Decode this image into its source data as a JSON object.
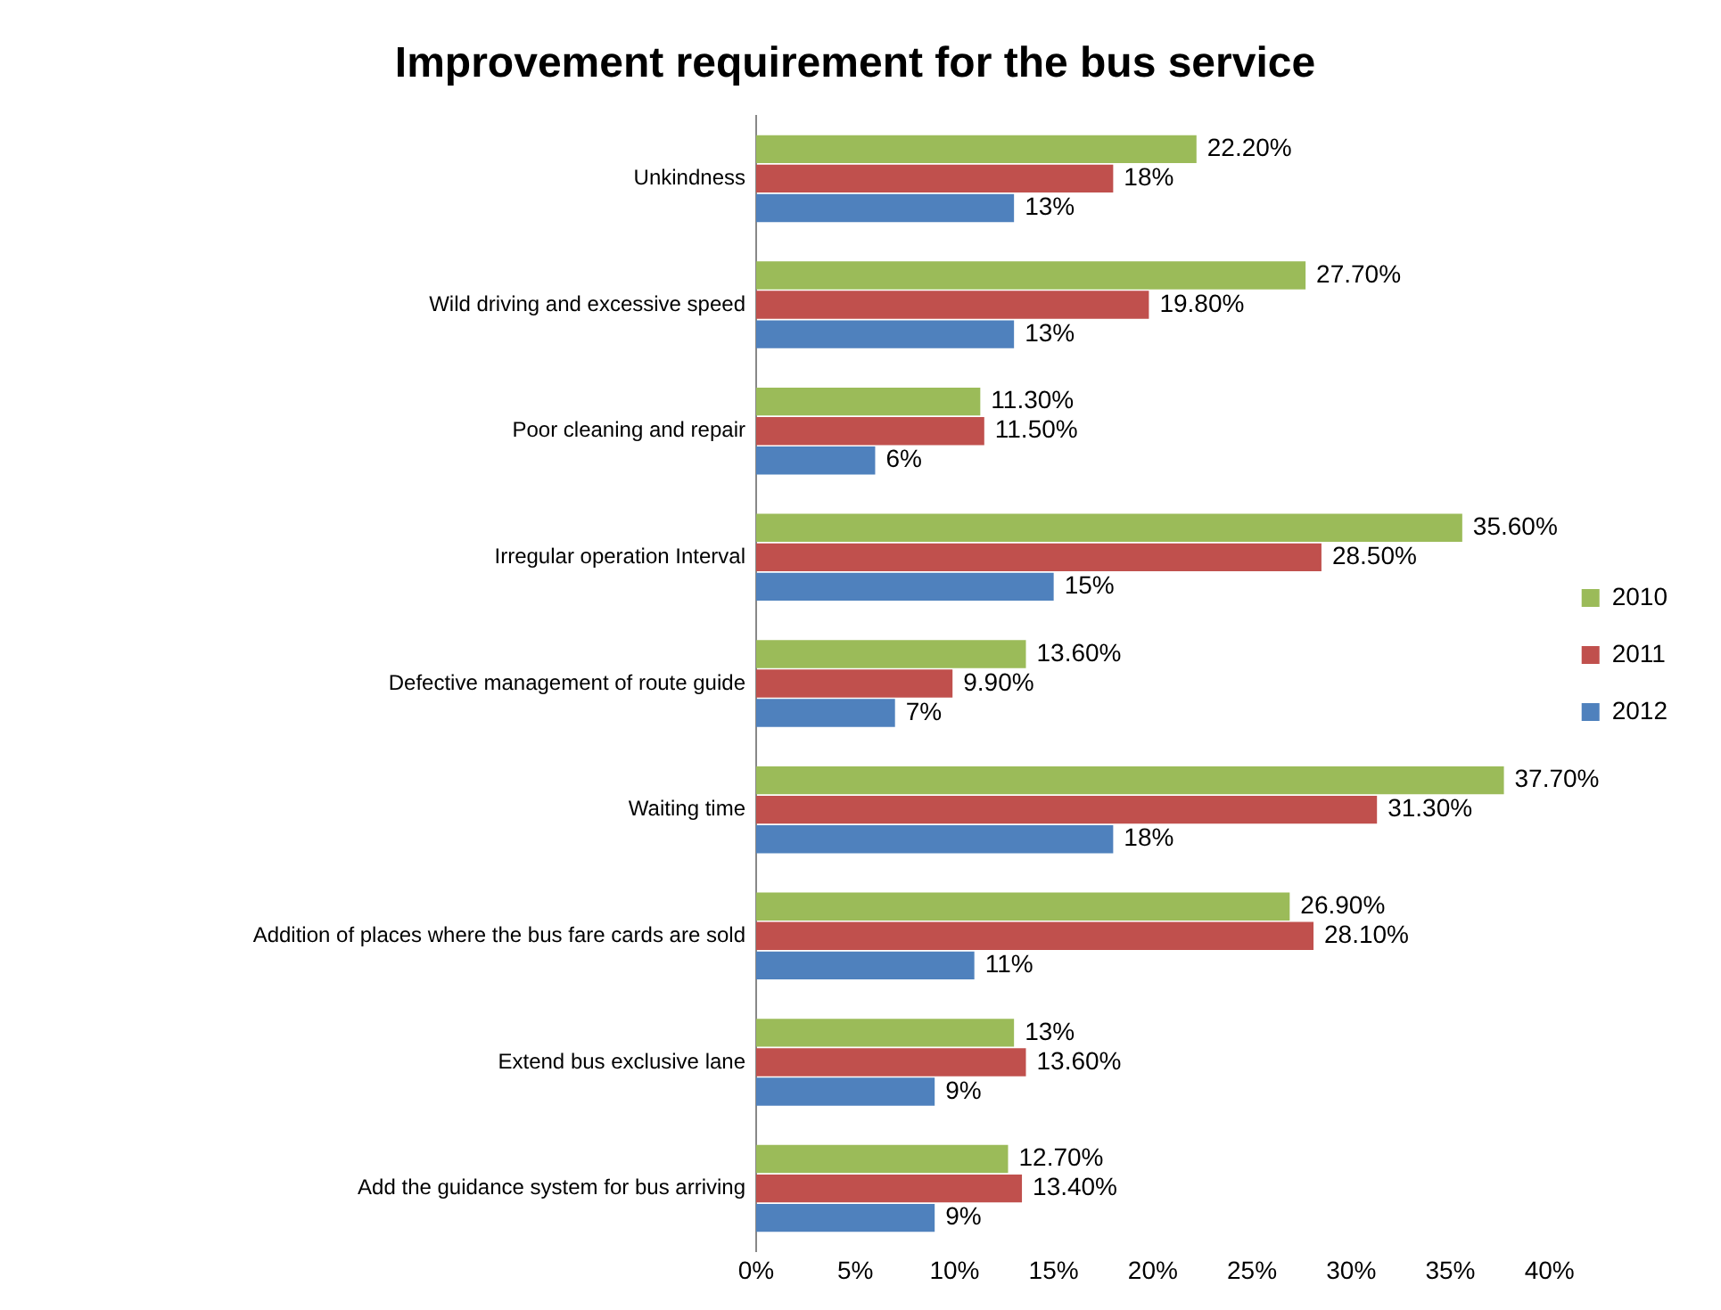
{
  "chart_data": {
    "type": "bar",
    "orientation": "horizontal",
    "title": "Improvement requirement for the bus service",
    "categories": [
      "Unkindness",
      "Wild driving and excessive speed",
      "Poor cleaning and repair",
      "Irregular operation Interval",
      "Defective management of route guide",
      "Waiting time",
      "Addition of places where the bus fare cards are sold",
      "Extend bus exclusive lane",
      "Add the guidance system for bus arriving"
    ],
    "series": [
      {
        "name": "2010",
        "color": "#9bbb59",
        "values": [
          22.2,
          27.7,
          11.3,
          35.6,
          13.6,
          37.7,
          26.9,
          13,
          12.7
        ],
        "value_labels": [
          "22.20%",
          "27.70%",
          "11.30%",
          "35.60%",
          "13.60%",
          "37.70%",
          "26.90%",
          "13%",
          "12.70%"
        ]
      },
      {
        "name": "2011",
        "color": "#c0504d",
        "values": [
          18,
          19.8,
          11.5,
          28.5,
          9.9,
          31.3,
          28.1,
          13.6,
          13.4
        ],
        "value_labels": [
          "18%",
          "19.80%",
          "11.50%",
          "28.50%",
          "9.90%",
          "31.30%",
          "28.10%",
          "13.60%",
          "13.40%"
        ]
      },
      {
        "name": "2012",
        "color": "#4f81bd",
        "values": [
          13,
          13,
          6,
          15,
          7,
          18,
          11,
          9,
          9
        ],
        "value_labels": [
          "13%",
          "13%",
          "6%",
          "15%",
          "7%",
          "18%",
          "11%",
          "9%",
          "9%"
        ]
      }
    ],
    "xlim": [
      0,
      40
    ],
    "xticks": [
      {
        "value": 0,
        "label": "0%"
      },
      {
        "value": 5,
        "label": "5%"
      },
      {
        "value": 10,
        "label": "10%"
      },
      {
        "value": 15,
        "label": "15%"
      },
      {
        "value": 20,
        "label": "20%"
      },
      {
        "value": 25,
        "label": "25%"
      },
      {
        "value": 30,
        "label": "30%"
      },
      {
        "value": 35,
        "label": "35%"
      },
      {
        "value": 40,
        "label": "40%"
      }
    ],
    "grid": false,
    "legend": "right"
  }
}
